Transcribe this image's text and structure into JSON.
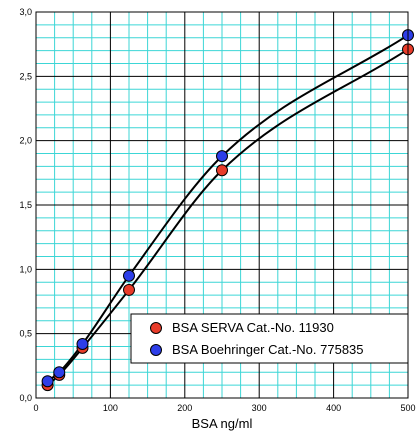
{
  "chart_data": {
    "type": "line",
    "xlabel": "BSA ng/ml",
    "ylabel": "",
    "xlim": [
      0,
      500
    ],
    "ylim": [
      0.0,
      3.0
    ],
    "x_major_ticks": [
      0,
      100,
      200,
      300,
      400,
      500
    ],
    "x_tick_labels": [
      "0",
      "100",
      "200",
      "300",
      "400",
      "500"
    ],
    "y_major_ticks": [
      0.0,
      0.5,
      1.0,
      1.5,
      2.0,
      2.5,
      3.0
    ],
    "y_tick_labels": [
      "0,0",
      "0,5",
      "1,0",
      "1,5",
      "2,0",
      "2,5",
      "3,0"
    ],
    "grid": true,
    "grid_color": "#3cd6d6",
    "legend_position": "bottom-right",
    "x": [
      15.6,
      31.25,
      62.5,
      125,
      250,
      500
    ],
    "series": [
      {
        "name": "BSA SERVA Cat.-No. 11930",
        "color": "#e83c2a",
        "values": [
          0.1,
          0.18,
          0.39,
          0.84,
          1.77,
          2.71
        ]
      },
      {
        "name": "BSA Boehringer Cat.-No. 775835",
        "color": "#2d3ee8",
        "values": [
          0.13,
          0.2,
          0.42,
          0.95,
          1.88,
          2.82
        ]
      }
    ]
  }
}
